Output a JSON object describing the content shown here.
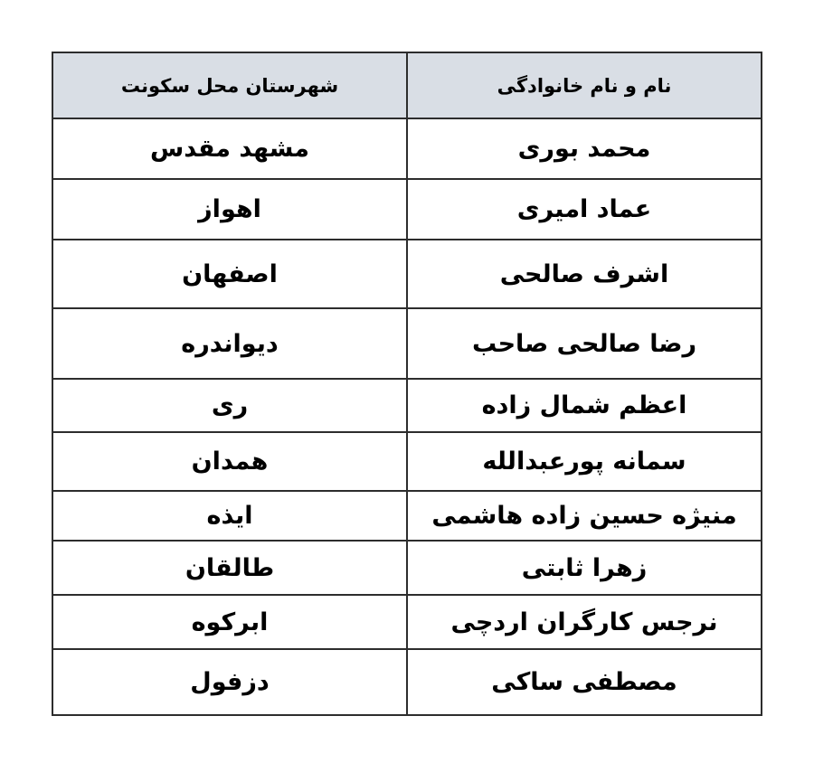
{
  "table": {
    "columns": [
      {
        "key": "name",
        "label": "نام و نام خانوادگی"
      },
      {
        "key": "city",
        "label": "شهرستان محل سکونت"
      }
    ],
    "rows": [
      {
        "name": "محمد بوری",
        "city": "مشهد مقدس"
      },
      {
        "name": "عماد امیری",
        "city": "اهواز"
      },
      {
        "name": "اشرف صالحی",
        "city": "اصفهان"
      },
      {
        "name": "رضا صالحی صاحب",
        "city": "دیواندره"
      },
      {
        "name": "اعظم شمال زاده",
        "city": "ری"
      },
      {
        "name": "سمانه پورعبدالله",
        "city": "همدان"
      },
      {
        "name": "منیژه حسین زاده هاشمی",
        "city": "ایذه"
      },
      {
        "name": "زهرا ثابتی",
        "city": "طالقان"
      },
      {
        "name": "نرجس کارگران اردچی",
        "city": "ابرکوه"
      },
      {
        "name": "مصطفی ساکی",
        "city": "دزفول"
      }
    ],
    "colors": {
      "header_bg": "#d9dee5",
      "border": "#2d2d2d",
      "text": "#000000",
      "row_bg": "#ffffff",
      "page_bg": "#ffffff"
    }
  }
}
